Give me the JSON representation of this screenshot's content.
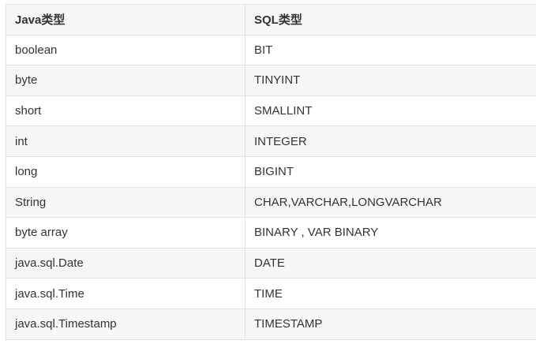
{
  "table": {
    "headers": [
      "Java类型",
      "SQL类型"
    ],
    "rows": [
      [
        "boolean",
        "BIT"
      ],
      [
        "byte",
        "TINYINT"
      ],
      [
        "short",
        "SMALLINT"
      ],
      [
        "int",
        "INTEGER"
      ],
      [
        "long",
        "BIGINT"
      ],
      [
        "String",
        "CHAR,VARCHAR,LONGVARCHAR"
      ],
      [
        "byte array",
        "BINARY , VAR BINARY"
      ],
      [
        "java.sql.Date",
        "DATE"
      ],
      [
        "java.sql.Time",
        "TIME"
      ],
      [
        "java.sql.Timestamp",
        "TIMESTAMP"
      ]
    ]
  },
  "colors": {
    "border": "#dfe2e5",
    "header_bg": "#f7f7f7",
    "stripe_bg": "#f7f7f7",
    "text": "#333333"
  }
}
